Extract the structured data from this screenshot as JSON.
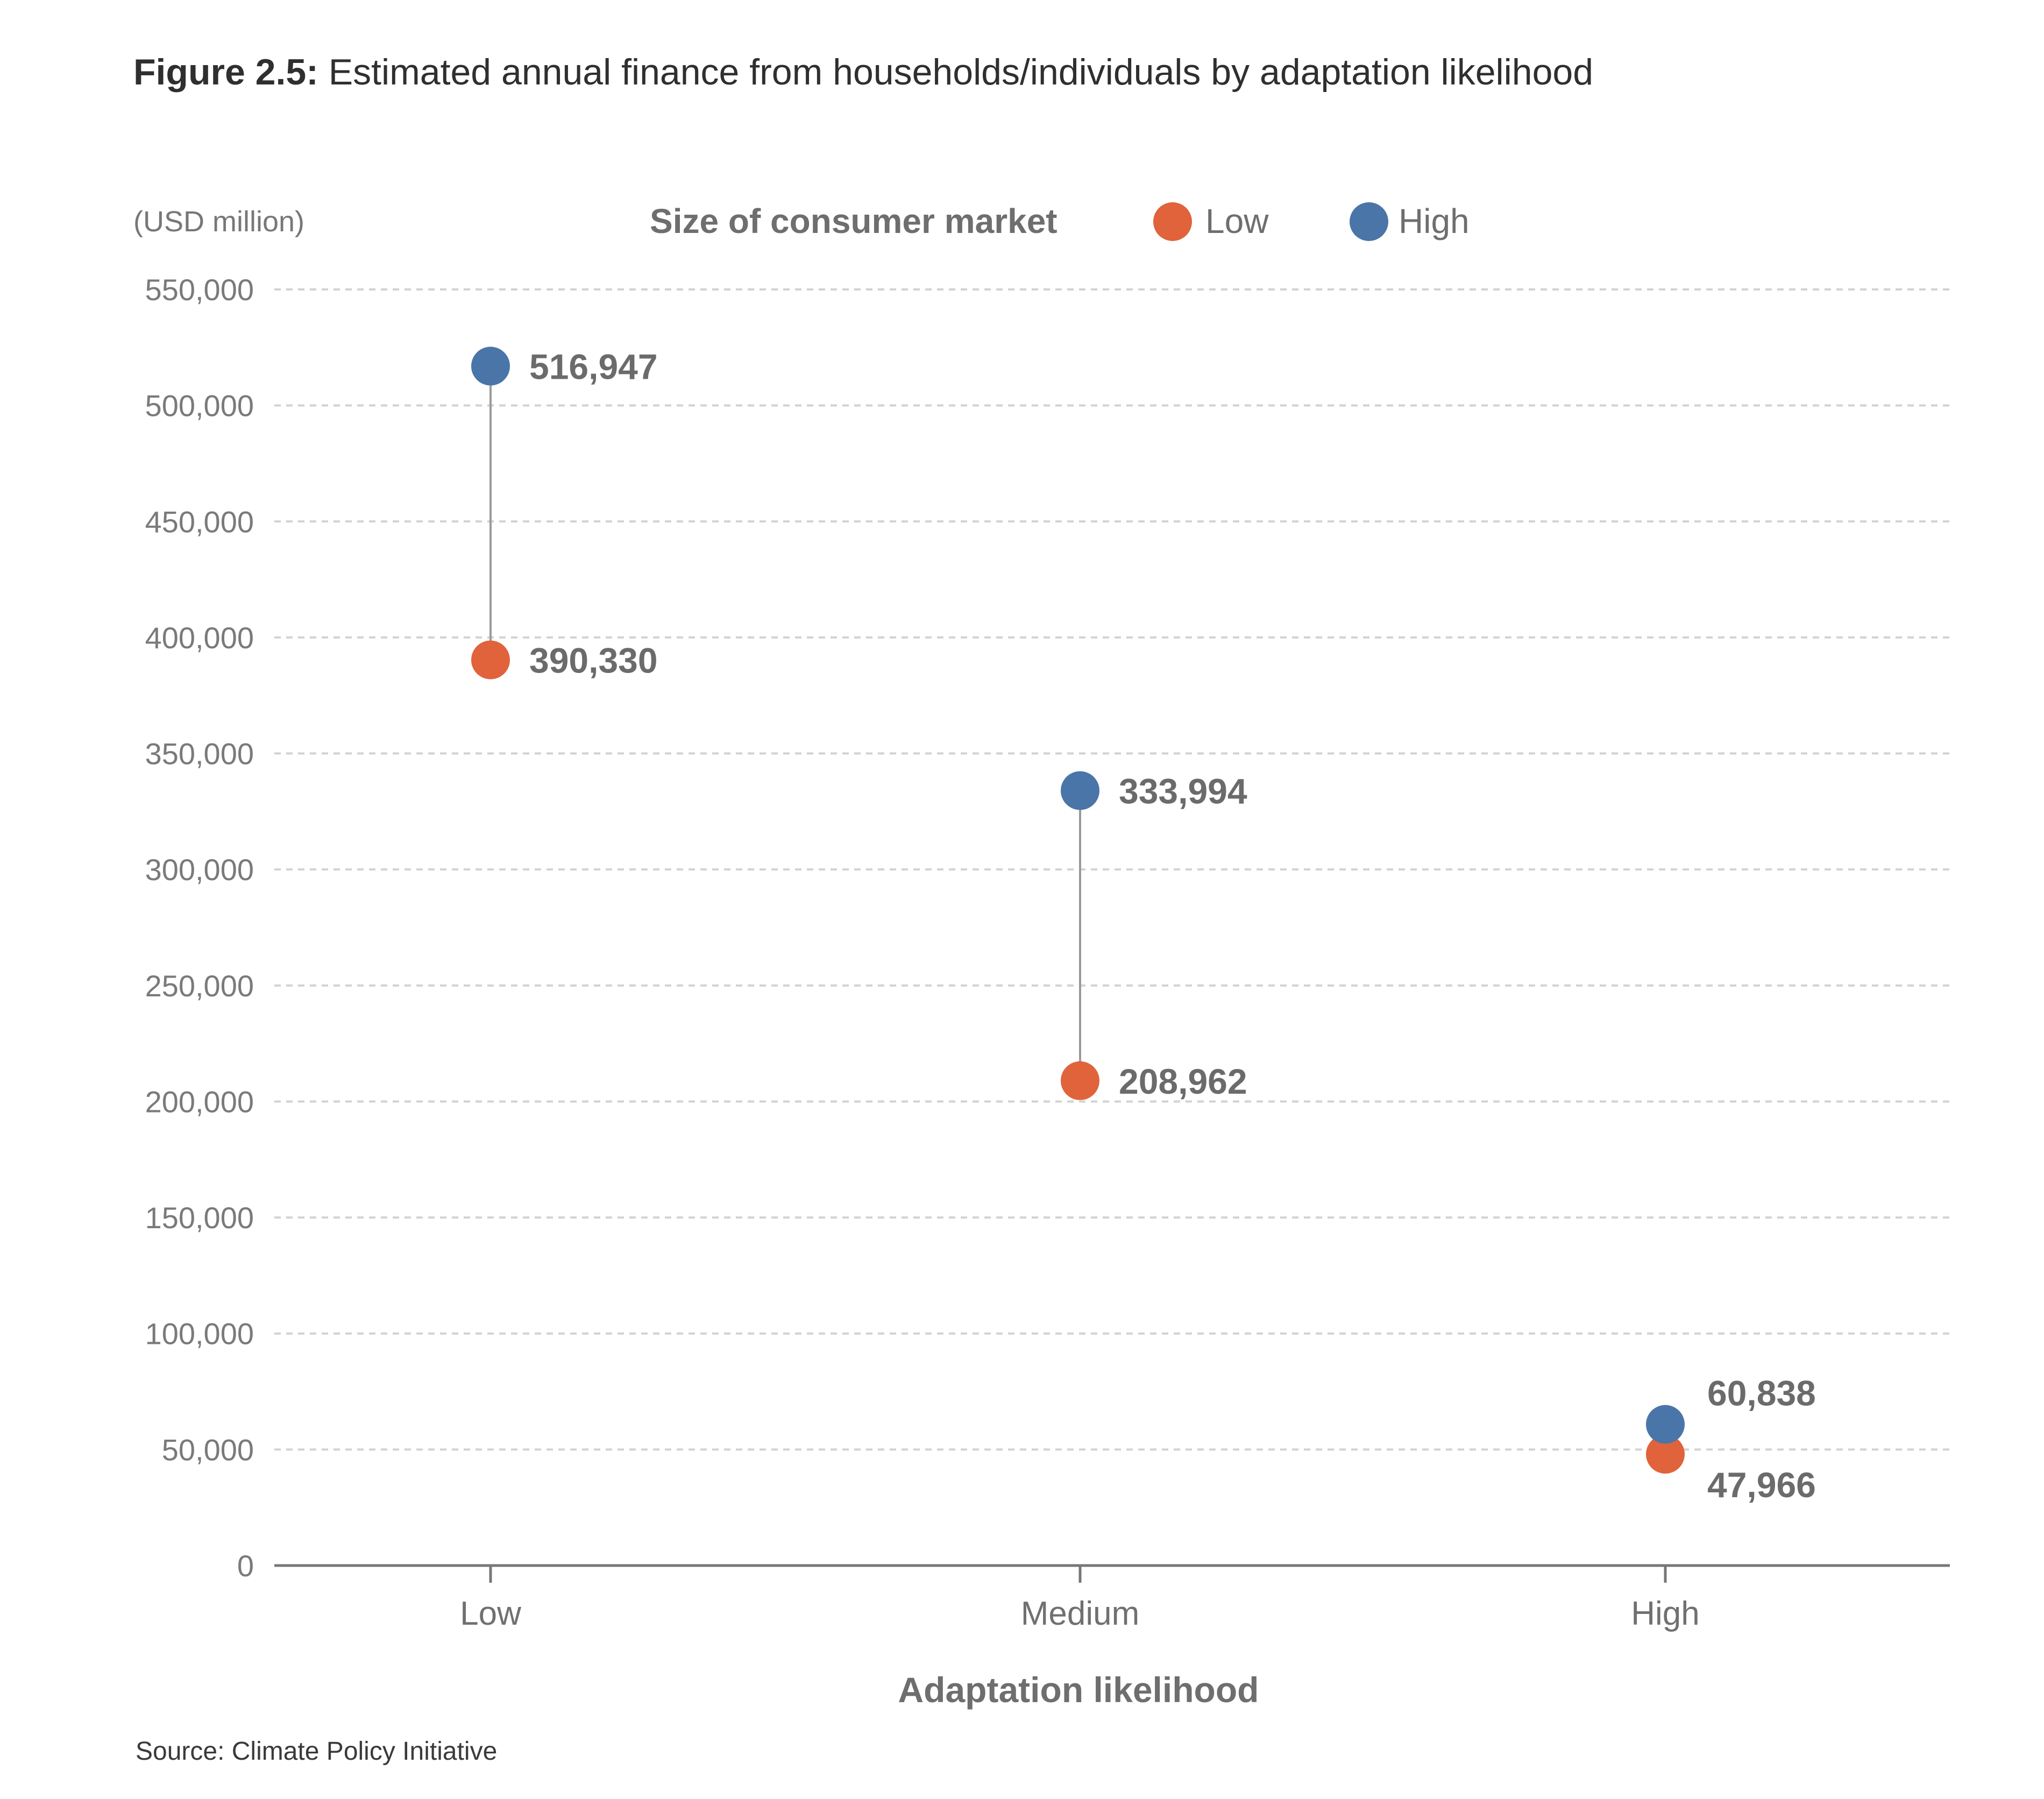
{
  "figure": {
    "number": "Figure 2.5:",
    "title": "Estimated annual finance from households/individuals by adaptation likelihood",
    "source": "Source: Climate Policy Initiative"
  },
  "chart_data": {
    "type": "dumbbell",
    "unit_label": "(USD million)",
    "xlabel": "Adaptation likelihood",
    "ylabel": "",
    "categories": [
      "Low",
      "Medium",
      "High"
    ],
    "ylim": [
      0,
      550000
    ],
    "yticks": [
      0,
      50000,
      100000,
      150000,
      200000,
      250000,
      300000,
      350000,
      400000,
      450000,
      500000,
      550000
    ],
    "ytick_labels": [
      "0",
      "50,000",
      "100,000",
      "150,000",
      "200,000",
      "250,000",
      "300,000",
      "350,000",
      "400,000",
      "450,000",
      "500,000",
      "550,000"
    ],
    "grid": true,
    "legend_title": "Size of consumer market",
    "legend_position": "top",
    "series": [
      {
        "name": "Low",
        "color": "#e0633c",
        "values": [
          390330,
          208962,
          47966
        ],
        "labels": [
          "390,330",
          "208,962",
          "47,966"
        ]
      },
      {
        "name": "High",
        "color": "#4a75a8",
        "values": [
          516947,
          333994,
          60838
        ],
        "labels": [
          "516,947",
          "333,994",
          "60,838"
        ]
      }
    ]
  }
}
